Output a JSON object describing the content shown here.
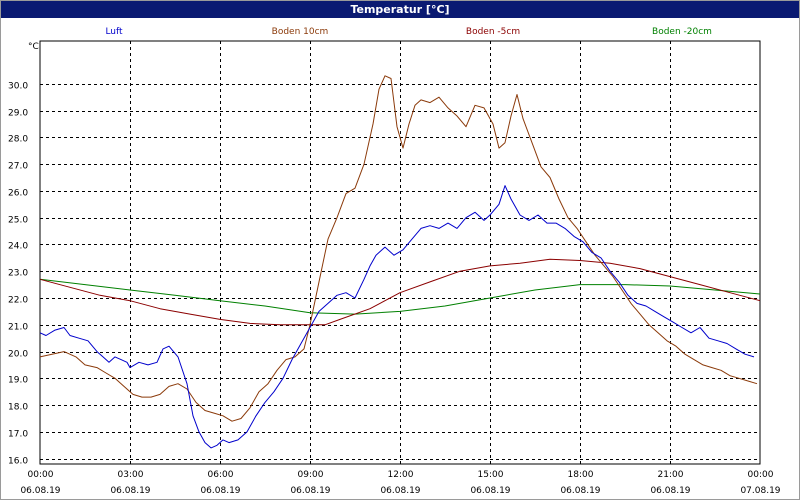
{
  "window": {
    "title": "Temperatur [°C]"
  },
  "chart_data": {
    "type": "line",
    "title": "Temperatur [°C]",
    "ylabel": "°C",
    "xlabel": "",
    "ylim": [
      15.8,
      31.6
    ],
    "xlim": [
      0,
      24
    ],
    "grid": true,
    "legend_position": "top",
    "yticks": [
      16.0,
      17.0,
      18.0,
      19.0,
      20.0,
      21.0,
      22.0,
      23.0,
      24.0,
      25.0,
      26.0,
      27.0,
      28.0,
      29.0,
      30.0
    ],
    "ytick_labels": [
      "16.0",
      "17.0",
      "18.0",
      "19.0",
      "20.0",
      "21.0",
      "22.0",
      "23.0",
      "24.0",
      "25.0",
      "26.0",
      "27.0",
      "28.0",
      "29.0",
      "30.0"
    ],
    "xticks": [
      {
        "hour": 0,
        "time": "00:00",
        "date": "06.08.19"
      },
      {
        "hour": 3,
        "time": "03:00",
        "date": "06.08.19"
      },
      {
        "hour": 6,
        "time": "06:00",
        "date": "06.08.19"
      },
      {
        "hour": 9,
        "time": "09:00",
        "date": "06.08.19"
      },
      {
        "hour": 12,
        "time": "12:00",
        "date": "06.08.19"
      },
      {
        "hour": 15,
        "time": "15:00",
        "date": "06.08.19"
      },
      {
        "hour": 18,
        "time": "18:00",
        "date": "06.08.19"
      },
      {
        "hour": 21,
        "time": "21:00",
        "date": "06.08.19"
      },
      {
        "hour": 24,
        "time": "00:00",
        "date": "07.08.19"
      }
    ],
    "x_unit": "hour of day, 06.08.19 00:00 to 07.08.19 00:00",
    "series": [
      {
        "name": "Luft",
        "color": "#0000cc",
        "x": [
          0,
          0.2,
          0.5,
          0.8,
          1.0,
          1.3,
          1.6,
          1.9,
          2.1,
          2.3,
          2.5,
          2.7,
          2.9,
          3.0,
          3.3,
          3.6,
          3.9,
          4.1,
          4.3,
          4.6,
          4.9,
          5.1,
          5.3,
          5.5,
          5.7,
          5.9,
          6.1,
          6.3,
          6.6,
          6.9,
          7.2,
          7.5,
          7.8,
          8.1,
          8.4,
          8.7,
          9.0,
          9.3,
          9.6,
          9.9,
          10.2,
          10.5,
          10.8,
          11.0,
          11.2,
          11.5,
          11.8,
          12.1,
          12.4,
          12.7,
          13.0,
          13.3,
          13.6,
          13.9,
          14.2,
          14.5,
          14.8,
          15.0,
          15.3,
          15.5,
          15.7,
          16.0,
          16.3,
          16.6,
          16.9,
          17.2,
          17.5,
          17.8,
          18.1,
          18.4,
          18.7,
          19.0,
          19.3,
          19.6,
          19.9,
          20.2,
          20.5,
          20.8,
          21.1,
          21.4,
          21.7,
          22.0,
          22.3,
          22.6,
          22.9,
          23.2,
          23.5,
          23.8
        ],
        "values": [
          20.7,
          20.6,
          20.8,
          20.9,
          20.6,
          20.5,
          20.4,
          20.0,
          19.8,
          19.6,
          19.8,
          19.7,
          19.6,
          19.4,
          19.6,
          19.5,
          19.6,
          20.1,
          20.2,
          19.8,
          18.8,
          17.6,
          17.0,
          16.6,
          16.4,
          16.5,
          16.7,
          16.6,
          16.7,
          17.0,
          17.6,
          18.1,
          18.5,
          19.0,
          19.7,
          20.3,
          20.9,
          21.5,
          21.8,
          22.1,
          22.2,
          22.0,
          22.7,
          23.2,
          23.6,
          23.9,
          23.6,
          23.8,
          24.2,
          24.6,
          24.7,
          24.6,
          24.8,
          24.6,
          25.0,
          25.2,
          24.9,
          25.1,
          25.5,
          26.2,
          25.7,
          25.1,
          24.9,
          25.1,
          24.8,
          24.8,
          24.6,
          24.3,
          24.1,
          23.7,
          23.5,
          23.0,
          22.6,
          22.1,
          21.8,
          21.7,
          21.5,
          21.3,
          21.1,
          20.9,
          20.7,
          20.9,
          20.5,
          20.4,
          20.3,
          20.1,
          19.9,
          19.8
        ]
      },
      {
        "name": "Boden 10cm",
        "color": "#8b3a0a",
        "x": [
          0,
          0.4,
          0.8,
          1.2,
          1.5,
          1.9,
          2.2,
          2.5,
          2.8,
          3.1,
          3.4,
          3.7,
          4.0,
          4.3,
          4.6,
          4.9,
          5.2,
          5.5,
          5.8,
          6.1,
          6.4,
          6.7,
          7.0,
          7.3,
          7.6,
          7.9,
          8.2,
          8.5,
          8.8,
          9.0,
          9.3,
          9.6,
          9.9,
          10.2,
          10.5,
          10.8,
          11.1,
          11.3,
          11.5,
          11.7,
          11.9,
          12.1,
          12.3,
          12.5,
          12.7,
          13.0,
          13.3,
          13.6,
          13.9,
          14.2,
          14.5,
          14.8,
          15.1,
          15.3,
          15.5,
          15.7,
          15.9,
          16.1,
          16.4,
          16.7,
          17.0,
          17.3,
          17.6,
          17.9,
          18.2,
          18.5,
          18.8,
          19.1,
          19.4,
          19.7,
          20.0,
          20.3,
          20.6,
          20.9,
          21.2,
          21.5,
          21.8,
          22.1,
          22.4,
          22.7,
          23.0,
          23.3,
          23.6,
          23.9
        ],
        "values": [
          19.8,
          19.9,
          20.0,
          19.8,
          19.5,
          19.4,
          19.2,
          19.0,
          18.7,
          18.4,
          18.3,
          18.3,
          18.4,
          18.7,
          18.8,
          18.6,
          18.1,
          17.8,
          17.7,
          17.6,
          17.4,
          17.5,
          17.9,
          18.5,
          18.8,
          19.3,
          19.7,
          19.8,
          20.1,
          21.0,
          22.6,
          24.2,
          25.0,
          25.9,
          26.1,
          27.0,
          28.5,
          29.8,
          30.3,
          30.2,
          28.4,
          27.6,
          28.5,
          29.2,
          29.4,
          29.3,
          29.5,
          29.1,
          28.8,
          28.4,
          29.2,
          29.1,
          28.5,
          27.6,
          27.8,
          28.8,
          29.6,
          28.7,
          27.8,
          26.9,
          26.5,
          25.7,
          25.0,
          24.6,
          24.1,
          23.6,
          23.2,
          22.8,
          22.3,
          21.8,
          21.4,
          21.0,
          20.7,
          20.4,
          20.2,
          19.9,
          19.7,
          19.5,
          19.4,
          19.3,
          19.1,
          19.0,
          18.9,
          18.8
        ]
      },
      {
        "name": "Boden -5cm",
        "color": "#8b0000",
        "x": [
          0,
          1,
          2,
          3,
          4,
          5,
          6,
          7,
          8,
          9,
          9.5,
          10,
          11,
          12,
          13,
          14,
          15,
          16,
          17,
          18,
          19,
          20,
          21,
          22,
          23,
          24
        ],
        "values": [
          22.7,
          22.4,
          22.1,
          21.9,
          21.6,
          21.4,
          21.2,
          21.05,
          21.0,
          21.0,
          21.0,
          21.2,
          21.6,
          22.2,
          22.6,
          23.0,
          23.2,
          23.3,
          23.45,
          23.4,
          23.3,
          23.1,
          22.8,
          22.5,
          22.2,
          21.9
        ]
      },
      {
        "name": "Boden -20cm",
        "color": "#008000",
        "x": [
          0,
          1.5,
          3,
          4.5,
          6,
          7.5,
          9,
          10.5,
          12,
          13.5,
          15,
          16.5,
          18,
          19.5,
          21,
          22.5,
          24
        ],
        "values": [
          22.7,
          22.5,
          22.3,
          22.1,
          21.9,
          21.7,
          21.45,
          21.4,
          21.5,
          21.7,
          22.0,
          22.3,
          22.5,
          22.5,
          22.45,
          22.3,
          22.15
        ]
      }
    ]
  }
}
